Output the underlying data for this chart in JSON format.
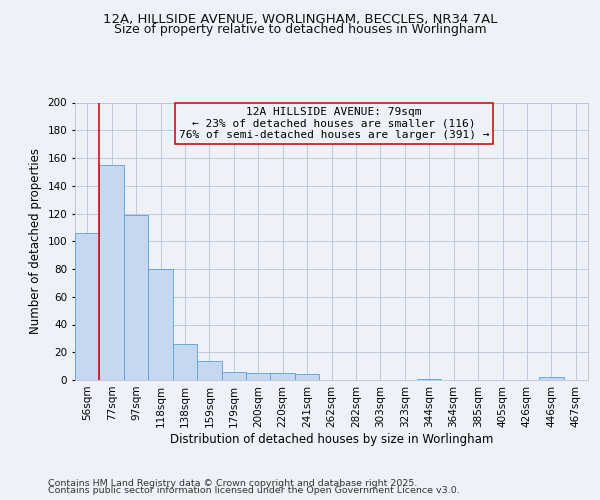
{
  "title1": "12A, HILLSIDE AVENUE, WORLINGHAM, BECCLES, NR34 7AL",
  "title2": "Size of property relative to detached houses in Worlingham",
  "xlabel": "Distribution of detached houses by size in Worlingham",
  "ylabel": "Number of detached properties",
  "categories": [
    "56sqm",
    "77sqm",
    "97sqm",
    "118sqm",
    "138sqm",
    "159sqm",
    "179sqm",
    "200sqm",
    "220sqm",
    "241sqm",
    "262sqm",
    "282sqm",
    "303sqm",
    "323sqm",
    "344sqm",
    "364sqm",
    "385sqm",
    "405sqm",
    "426sqm",
    "446sqm",
    "467sqm"
  ],
  "values": [
    106,
    155,
    119,
    80,
    26,
    14,
    6,
    5,
    5,
    4,
    0,
    0,
    0,
    0,
    1,
    0,
    0,
    0,
    0,
    2,
    0
  ],
  "bar_color": "#c5d8f0",
  "bar_edge_color": "#5a9fd4",
  "ylim": [
    0,
    200
  ],
  "yticks": [
    0,
    20,
    40,
    60,
    80,
    100,
    120,
    140,
    160,
    180,
    200
  ],
  "property_label": "12A HILLSIDE AVENUE: 79sqm",
  "annotation_line1": "← 23% of detached houses are smaller (116)",
  "annotation_line2": "76% of semi-detached houses are larger (391) →",
  "vline_color": "#cc0000",
  "footer1": "Contains HM Land Registry data © Crown copyright and database right 2025.",
  "footer2": "Contains public sector information licensed under the Open Government Licence v3.0.",
  "background_color": "#eef2f8",
  "plot_bg_color": "#eef2f8",
  "grid_color": "#b8c4d8",
  "title1_fontsize": 9.5,
  "title2_fontsize": 9.0,
  "axis_label_fontsize": 8.5,
  "tick_fontsize": 7.5,
  "annot_fontsize": 8.0,
  "footer_fontsize": 6.8
}
